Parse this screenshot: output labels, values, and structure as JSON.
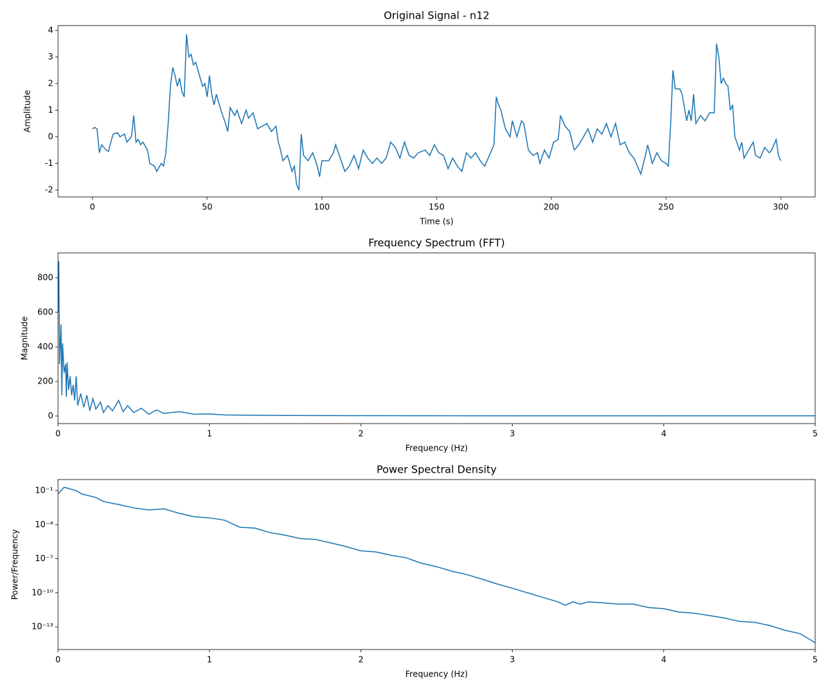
{
  "chart_data": [
    {
      "type": "line",
      "title": "Original Signal - n12",
      "xlabel": "Time (s)",
      "ylabel": "Amplitude",
      "color": "#1f77b4",
      "xlim": [
        -15,
        315
      ],
      "ylim": [
        -2.26,
        4.18
      ],
      "xticks": [
        0,
        50,
        100,
        150,
        200,
        250,
        300
      ],
      "yticks": [
        -2,
        -1,
        0,
        1,
        2,
        3,
        4
      ],
      "x": [
        0,
        1,
        2,
        3,
        4,
        6,
        7,
        8,
        9,
        11,
        12,
        14,
        15,
        17,
        18,
        19,
        20,
        21,
        22,
        24,
        25,
        27,
        28,
        30,
        31,
        32,
        33,
        34,
        35,
        36,
        37,
        38,
        39,
        40,
        41,
        42,
        43,
        44,
        45,
        47,
        48,
        49,
        50,
        51,
        52,
        53,
        54,
        56,
        58,
        59,
        60,
        62,
        63,
        65,
        67,
        68,
        70,
        72,
        74,
        76,
        78,
        80,
        81,
        82,
        83,
        85,
        87,
        88,
        89,
        90,
        91,
        92,
        94,
        96,
        98,
        99,
        100,
        103,
        105,
        106,
        108,
        110,
        112,
        114,
        116,
        118,
        120,
        122,
        124,
        126,
        128,
        130,
        132,
        134,
        136,
        138,
        140,
        142,
        145,
        147,
        149,
        151,
        153,
        155,
        157,
        159,
        161,
        163,
        165,
        167,
        169,
        171,
        173,
        175,
        176,
        177,
        178,
        180,
        182,
        183,
        185,
        187,
        188,
        190,
        192,
        194,
        195,
        197,
        199,
        201,
        203,
        204,
        206,
        208,
        210,
        212,
        214,
        216,
        218,
        220,
        222,
        224,
        226,
        228,
        230,
        232,
        234,
        236,
        238,
        239,
        241,
        242,
        244,
        246,
        248,
        250,
        251,
        252,
        253,
        254,
        256,
        257,
        259,
        260,
        261,
        262,
        263,
        265,
        267,
        269,
        271,
        272,
        273,
        274,
        275,
        276,
        277,
        278,
        279,
        280,
        282,
        283,
        284,
        286,
        288,
        289,
        291,
        293,
        295,
        296,
        298,
        299,
        300
      ],
      "values": [
        0.3,
        0.35,
        0.3,
        -0.6,
        -0.3,
        -0.5,
        -0.55,
        -0.2,
        0.1,
        0.15,
        0.0,
        0.1,
        -0.2,
        0.0,
        0.8,
        -0.2,
        -0.1,
        -0.3,
        -0.2,
        -0.5,
        -1.0,
        -1.1,
        -1.3,
        -1.0,
        -1.1,
        -0.6,
        0.5,
        1.9,
        2.6,
        2.3,
        1.9,
        2.2,
        1.7,
        1.5,
        3.85,
        3.0,
        3.1,
        2.7,
        2.8,
        2.2,
        1.9,
        2.0,
        1.5,
        2.3,
        1.6,
        1.2,
        1.6,
        1.0,
        0.5,
        0.2,
        1.1,
        0.8,
        1.0,
        0.5,
        1.0,
        0.7,
        0.9,
        0.3,
        0.4,
        0.5,
        0.2,
        0.4,
        -0.2,
        -0.5,
        -0.9,
        -0.7,
        -1.3,
        -1.1,
        -1.8,
        -2.0,
        0.1,
        -0.7,
        -0.9,
        -0.6,
        -1.1,
        -1.5,
        -0.9,
        -0.9,
        -0.6,
        -0.3,
        -0.8,
        -1.3,
        -1.1,
        -0.7,
        -1.2,
        -0.5,
        -0.8,
        -1.0,
        -0.8,
        -1.0,
        -0.8,
        -0.2,
        -0.4,
        -0.8,
        -0.2,
        -0.7,
        -0.8,
        -0.6,
        -0.5,
        -0.7,
        -0.3,
        -0.6,
        -0.7,
        -1.2,
        -0.8,
        -1.1,
        -1.3,
        -0.6,
        -0.8,
        -0.6,
        -0.9,
        -1.1,
        -0.7,
        -0.3,
        1.5,
        1.2,
        1.0,
        0.3,
        0.0,
        0.6,
        0.0,
        0.6,
        0.5,
        -0.5,
        -0.7,
        -0.6,
        -1.0,
        -0.5,
        -0.8,
        -0.2,
        -0.1,
        0.8,
        0.4,
        0.2,
        -0.5,
        -0.3,
        0.0,
        0.3,
        -0.2,
        0.3,
        0.1,
        0.5,
        0.0,
        0.5,
        -0.3,
        -0.2,
        -0.6,
        -0.8,
        -1.2,
        -1.4,
        -0.7,
        -0.3,
        -1.0,
        -0.6,
        -0.9,
        -1.0,
        -1.1,
        0.5,
        2.5,
        1.8,
        1.8,
        1.6,
        0.6,
        1.0,
        0.6,
        1.6,
        0.5,
        0.8,
        0.6,
        0.9,
        0.9,
        3.5,
        3.0,
        2.0,
        2.2,
        2.0,
        1.9,
        1.0,
        1.2,
        0.0,
        -0.5,
        -0.2,
        -0.8,
        -0.5,
        -0.2,
        -0.7,
        -0.8,
        -0.4,
        -0.6,
        -0.5,
        -0.1,
        -0.7,
        -0.9
      ]
    },
    {
      "type": "line",
      "title": "Frequency Spectrum (FFT)",
      "xlabel": "Frequency (Hz)",
      "ylabel": "Magnitude",
      "color": "#1f77b4",
      "xlim": [
        0,
        5
      ],
      "ylim": [
        -44,
        944
      ],
      "xticks": [
        0,
        1,
        2,
        3,
        4,
        5
      ],
      "yticks": [
        0,
        200,
        400,
        600,
        800
      ],
      "x": [
        0,
        0.005,
        0.01,
        0.02,
        0.025,
        0.03,
        0.04,
        0.05,
        0.055,
        0.06,
        0.07,
        0.08,
        0.09,
        0.1,
        0.11,
        0.12,
        0.13,
        0.15,
        0.17,
        0.19,
        0.21,
        0.23,
        0.25,
        0.28,
        0.3,
        0.33,
        0.36,
        0.4,
        0.43,
        0.46,
        0.5,
        0.55,
        0.6,
        0.65,
        0.7,
        0.8,
        0.9,
        1.0,
        1.1,
        1.2,
        1.5,
        2,
        3,
        4,
        5
      ],
      "values": [
        600,
        896,
        300,
        530,
        120,
        420,
        250,
        300,
        110,
        310,
        150,
        230,
        120,
        180,
        90,
        230,
        60,
        130,
        50,
        120,
        30,
        100,
        40,
        80,
        20,
        60,
        30,
        90,
        25,
        60,
        20,
        45,
        10,
        35,
        15,
        25,
        10,
        12,
        6,
        5,
        3,
        2,
        1,
        1,
        1
      ]
    },
    {
      "type": "line",
      "title": "Power Spectral Density",
      "xlabel": "Frequency (Hz)",
      "ylabel": "Power/Frequency",
      "color": "#1f77b4",
      "yscale": "log",
      "xlim": [
        0,
        5
      ],
      "ylim": [
        1e-15,
        0.95
      ],
      "xticks": [
        0,
        1,
        2,
        3,
        4,
        5
      ],
      "yticks": [
        {
          "value": 0.1,
          "label": "10⁻¹"
        },
        {
          "value": 0.0001,
          "label": "10⁻⁴"
        },
        {
          "value": 1e-07,
          "label": "10⁻⁷"
        },
        {
          "value": 1e-10,
          "label": "10⁻¹⁰"
        },
        {
          "value": 1e-13,
          "label": "10⁻¹³"
        }
      ],
      "x": [
        0,
        0.04,
        0.12,
        0.16,
        0.25,
        0.3,
        0.4,
        0.5,
        0.6,
        0.7,
        0.8,
        0.9,
        1.0,
        1.1,
        1.2,
        1.3,
        1.4,
        1.5,
        1.6,
        1.7,
        1.8,
        1.9,
        2.0,
        2.1,
        2.2,
        2.3,
        2.4,
        2.5,
        2.6,
        2.7,
        2.8,
        2.9,
        3.0,
        3.1,
        3.2,
        3.3,
        3.35,
        3.4,
        3.45,
        3.5,
        3.6,
        3.7,
        3.8,
        3.9,
        4.0,
        4.1,
        4.2,
        4.3,
        4.4,
        4.5,
        4.6,
        4.7,
        4.8,
        4.9,
        5.0
      ],
      "values": [
        0.05,
        0.2,
        0.1,
        0.05,
        0.025,
        0.011,
        0.006,
        0.003,
        0.002,
        0.0025,
        0.001,
        0.0005,
        0.0004,
        0.00025,
        6e-05,
        5e-05,
        2e-05,
        1.2e-05,
        6e-06,
        5e-06,
        2.5e-06,
        1.2e-06,
        5e-07,
        4e-07,
        2e-07,
        1.2e-07,
        4e-08,
        2e-08,
        8e-09,
        4e-09,
        1.6e-09,
        6e-10,
        2.5e-10,
        1e-10,
        4e-11,
        1.6e-11,
        8e-12,
        1.6e-11,
        1e-11,
        1.6e-11,
        1.3e-11,
        1e-11,
        1e-11,
        5e-12,
        4e-12,
        2e-12,
        1.6e-12,
        1e-12,
        6e-13,
        3e-13,
        2.5e-13,
        1.3e-13,
        5e-14,
        2.5e-14,
        4e-15
      ]
    }
  ]
}
